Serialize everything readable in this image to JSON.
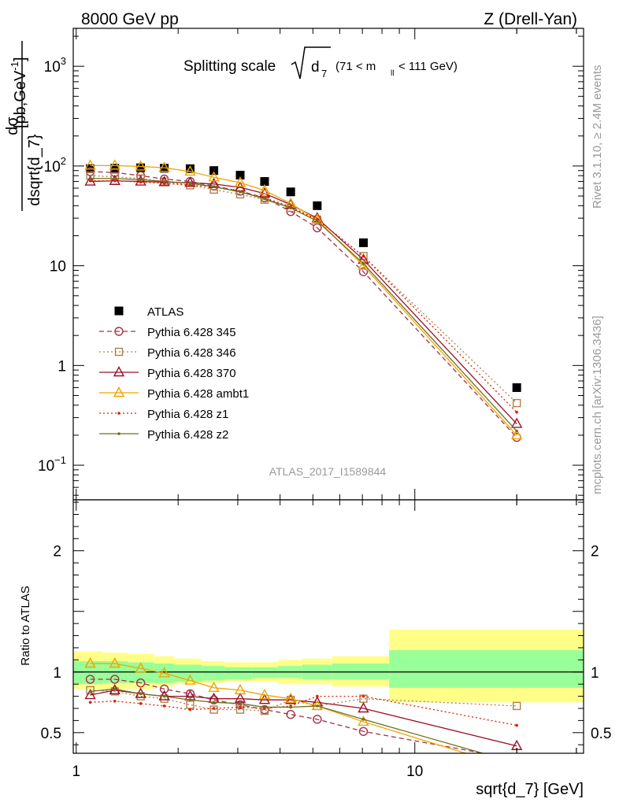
{
  "header": {
    "left": "8000 GeV pp",
    "right": "Z (Drell-Yan)"
  },
  "side_labels": {
    "rivet": "Rivet 3.1.10, ≥ 2.4M events",
    "mcplots": "mcplots.cern.ch [arXiv:1306.3436]"
  },
  "colors": {
    "band_inner": "#99ff99",
    "band_outer": "#ffff88",
    "ATLAS": "#000000",
    "Pythia 6.428 345": "#a0314a",
    "Pythia 6.428 346": "#b0804a",
    "Pythia 6.428 370": "#9a1028",
    "Pythia 6.428 ambt1": "#f0a400",
    "Pythia 6.428 z1": "#e02000",
    "Pythia 6.428 z2": "#707018"
  },
  "chart_data": [
    {
      "type": "line",
      "title": "Splitting scale",
      "title_formula_symbol": "d",
      "title_formula_subscript": "7",
      "title_cut_left": "(71 < m",
      "title_cut_sub": "ll",
      "title_cut_right": "< 111 GeV)",
      "ylabel_num": "dσ",
      "ylabel_den": "dsqrt{d_7}",
      "ylabel_units": "[pb,GeV",
      "ylabel_units_sup": "-1",
      "ylabel_units_end": "]",
      "analysis_label": "ATLAS_2017_I1589844",
      "x_scale": "log",
      "y_scale": "log",
      "xlim": [
        0.98,
        31.5
      ],
      "ylim": [
        0.045,
        2400
      ],
      "y_ticks": [
        {
          "value": 1000,
          "base": "10",
          "exp": "3"
        },
        {
          "value": 100,
          "base": "10",
          "exp": "2"
        },
        {
          "value": 10,
          "base": "10",
          "exp": ""
        },
        {
          "value": 1,
          "base": "1",
          "exp": ""
        },
        {
          "value": 0.1,
          "base": "10",
          "exp": "−1"
        }
      ],
      "legend_position": "middle-left",
      "x": [
        1.1,
        1.3,
        1.55,
        1.82,
        2.17,
        2.55,
        3.05,
        3.6,
        4.3,
        5.15,
        7.05,
        20.0
      ],
      "series": [
        {
          "name": "ATLAS",
          "style": "square-solid",
          "values": [
            94,
            95,
            96,
            95,
            94,
            90,
            81,
            70,
            55,
            40,
            17,
            0.6
          ]
        },
        {
          "name": "Pythia 6.428 345",
          "style": "circle-dashed",
          "values": [
            88,
            86,
            80,
            74,
            70,
            63,
            56,
            48,
            35,
            24,
            8.7,
            0.19
          ]
        },
        {
          "name": "Pythia 6.428 346",
          "style": "square-dotted",
          "values": [
            80,
            78,
            75,
            70,
            64,
            58,
            52,
            46,
            38,
            29,
            12.5,
            0.42
          ]
        },
        {
          "name": "Pythia 6.428 370",
          "style": "triangle-solid",
          "values": [
            70,
            71,
            70,
            69,
            68,
            66,
            61,
            53,
            41,
            30,
            11.5,
            0.26
          ]
        },
        {
          "name": "Pythia 6.428 ambt1",
          "style": "triangle-solid",
          "values": [
            101,
            101,
            99,
            96,
            88,
            77,
            68,
            57,
            42,
            29,
            10,
            0.2
          ]
        },
        {
          "name": "Pythia 6.428 z1",
          "style": "dot-dotted",
          "values": [
            71,
            71,
            69,
            67,
            64,
            62,
            55,
            48,
            39,
            29,
            12.5,
            0.34
          ]
        },
        {
          "name": "Pythia 6.428 z2",
          "style": "dot-solid",
          "values": [
            75,
            75,
            73,
            70,
            67,
            62,
            55,
            47,
            38,
            28,
            10.5,
            0.22
          ]
        }
      ]
    },
    {
      "type": "line",
      "ylabel": "Ratio to ATLAS",
      "xlabel": "sqrt{d_7} [GeV]",
      "x_scale": "log",
      "xlim": [
        0.98,
        31.5
      ],
      "ylim": [
        0.33,
        2.42
      ],
      "y_ticks": [
        0.5,
        1,
        2
      ],
      "y_tick_labels": [
        "0.5",
        "1",
        "2"
      ],
      "x_tick_labels": [
        {
          "value": 1,
          "label": "1"
        },
        {
          "value": 10,
          "label": "10"
        }
      ],
      "bins": [
        0.98,
        1.2,
        1.42,
        1.7,
        1.95,
        2.35,
        2.75,
        3.3,
        3.95,
        4.65,
        5.7,
        8.4,
        31.5
      ],
      "band_inner": [
        [
          0.9,
          1.09
        ],
        [
          0.91,
          1.09
        ],
        [
          0.91,
          1.08
        ],
        [
          0.91,
          1.07
        ],
        [
          0.92,
          1.06
        ],
        [
          0.93,
          1.05
        ],
        [
          0.94,
          1.04
        ],
        [
          0.95,
          1.04
        ],
        [
          0.95,
          1.05
        ],
        [
          0.94,
          1.06
        ],
        [
          0.94,
          1.07
        ],
        [
          0.87,
          1.18
        ]
      ],
      "band_outer": [
        [
          0.86,
          1.17
        ],
        [
          0.86,
          1.16
        ],
        [
          0.86,
          1.15
        ],
        [
          0.88,
          1.13
        ],
        [
          0.9,
          1.11
        ],
        [
          0.91,
          1.09
        ],
        [
          0.92,
          1.08
        ],
        [
          0.92,
          1.08
        ],
        [
          0.9,
          1.1
        ],
        [
          0.9,
          1.11
        ],
        [
          0.88,
          1.13
        ],
        [
          0.75,
          1.35
        ]
      ],
      "x": [
        1.1,
        1.3,
        1.55,
        1.82,
        2.17,
        2.55,
        3.05,
        3.6,
        4.3,
        5.15,
        7.05,
        20.0
      ],
      "series": [
        {
          "name": "Pythia 6.428 345",
          "values": [
            0.94,
            0.94,
            0.91,
            0.86,
            0.82,
            0.77,
            0.73,
            0.69,
            0.65,
            0.61,
            0.51,
            0.28
          ]
        },
        {
          "name": "Pythia 6.428 346",
          "values": [
            0.85,
            0.84,
            0.8,
            0.78,
            0.73,
            0.69,
            0.69,
            0.68,
            0.77,
            0.72,
            0.78,
            0.72
          ]
        },
        {
          "name": "Pythia 6.428 370",
          "values": [
            0.81,
            0.85,
            0.82,
            0.8,
            0.8,
            0.78,
            0.78,
            0.77,
            0.77,
            0.75,
            0.7,
            0.39
          ]
        },
        {
          "name": "Pythia 6.428 ambt1",
          "values": [
            1.07,
            1.07,
            1.03,
            0.99,
            0.93,
            0.87,
            0.85,
            0.81,
            0.78,
            0.72,
            0.59,
            0.2
          ]
        },
        {
          "name": "Pythia 6.428 z1",
          "values": [
            0.75,
            0.76,
            0.74,
            0.72,
            0.69,
            0.7,
            0.71,
            0.7,
            0.72,
            0.8,
            0.8,
            0.56
          ]
        },
        {
          "name": "Pythia 6.428 z2",
          "values": [
            0.84,
            0.86,
            0.82,
            0.8,
            0.77,
            0.75,
            0.74,
            0.71,
            0.71,
            0.72,
            0.61,
            0.25
          ]
        }
      ]
    }
  ]
}
